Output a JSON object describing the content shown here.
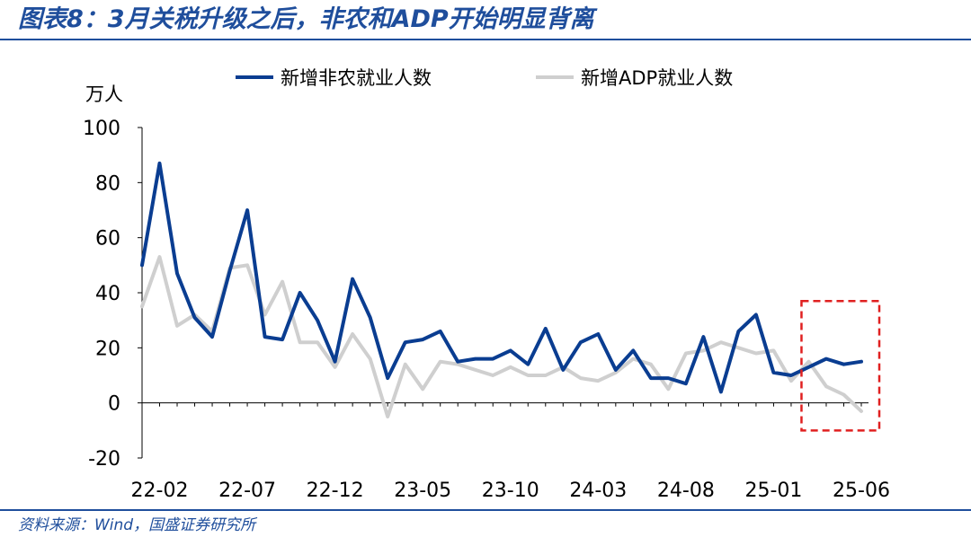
{
  "header": {
    "title": "图表8：3月关税升级之后，非农和ADP开始明显背离"
  },
  "footer": {
    "source": "资料来源：Wind，国盛证券研究所"
  },
  "colors": {
    "accent": "#1f4e9c",
    "nonfarm": "#0a3d91",
    "adp": "#cfcfcf",
    "highlight": "#e02020"
  },
  "chart_data": {
    "type": "line",
    "ylabel": "万人",
    "ylim": [
      -20,
      100
    ],
    "yticks": [
      -20,
      0,
      20,
      40,
      60,
      80,
      100
    ],
    "x": [
      "22-01",
      "22-02",
      "22-03",
      "22-04",
      "22-05",
      "22-06",
      "22-07",
      "22-08",
      "22-09",
      "22-10",
      "22-11",
      "22-12",
      "23-01",
      "23-02",
      "23-03",
      "23-04",
      "23-05",
      "23-06",
      "23-07",
      "23-08",
      "23-09",
      "23-10",
      "23-11",
      "23-12",
      "24-01",
      "24-02",
      "24-03",
      "24-04",
      "24-05",
      "24-06",
      "24-07",
      "24-08",
      "24-09",
      "24-10",
      "24-11",
      "24-12",
      "25-01",
      "25-02",
      "25-03",
      "25-04",
      "25-05",
      "25-06"
    ],
    "xticks": [
      "22-02",
      "22-07",
      "22-12",
      "23-05",
      "23-10",
      "24-03",
      "24-08",
      "25-01",
      "25-06"
    ],
    "series": [
      {
        "name": "新增非农就业人数",
        "color": "#0a3d91",
        "values": [
          50,
          87,
          47,
          31,
          24,
          48,
          70,
          24,
          23,
          40,
          30,
          15,
          45,
          31,
          9,
          22,
          23,
          26,
          15,
          16,
          16,
          19,
          14,
          27,
          12,
          22,
          25,
          12,
          19,
          9,
          9,
          7,
          24,
          4,
          26,
          32,
          11,
          10,
          13,
          16,
          14,
          15
        ]
      },
      {
        "name": "新增ADP就业人数",
        "color": "#cfcfcf",
        "values": [
          35,
          53,
          28,
          32,
          26,
          49,
          50,
          32,
          44,
          22,
          22,
          13,
          25,
          16,
          -5,
          14,
          5,
          15,
          14,
          12,
          10,
          13,
          10,
          10,
          13,
          9,
          8,
          11,
          16,
          14,
          5,
          18,
          19,
          22,
          20,
          18,
          19,
          8,
          15,
          6,
          3,
          -3
        ]
      }
    ],
    "legend": "top",
    "highlight_box": {
      "from": "25-03",
      "to": "25-06",
      "ymin": -10,
      "ymax": 37
    }
  }
}
